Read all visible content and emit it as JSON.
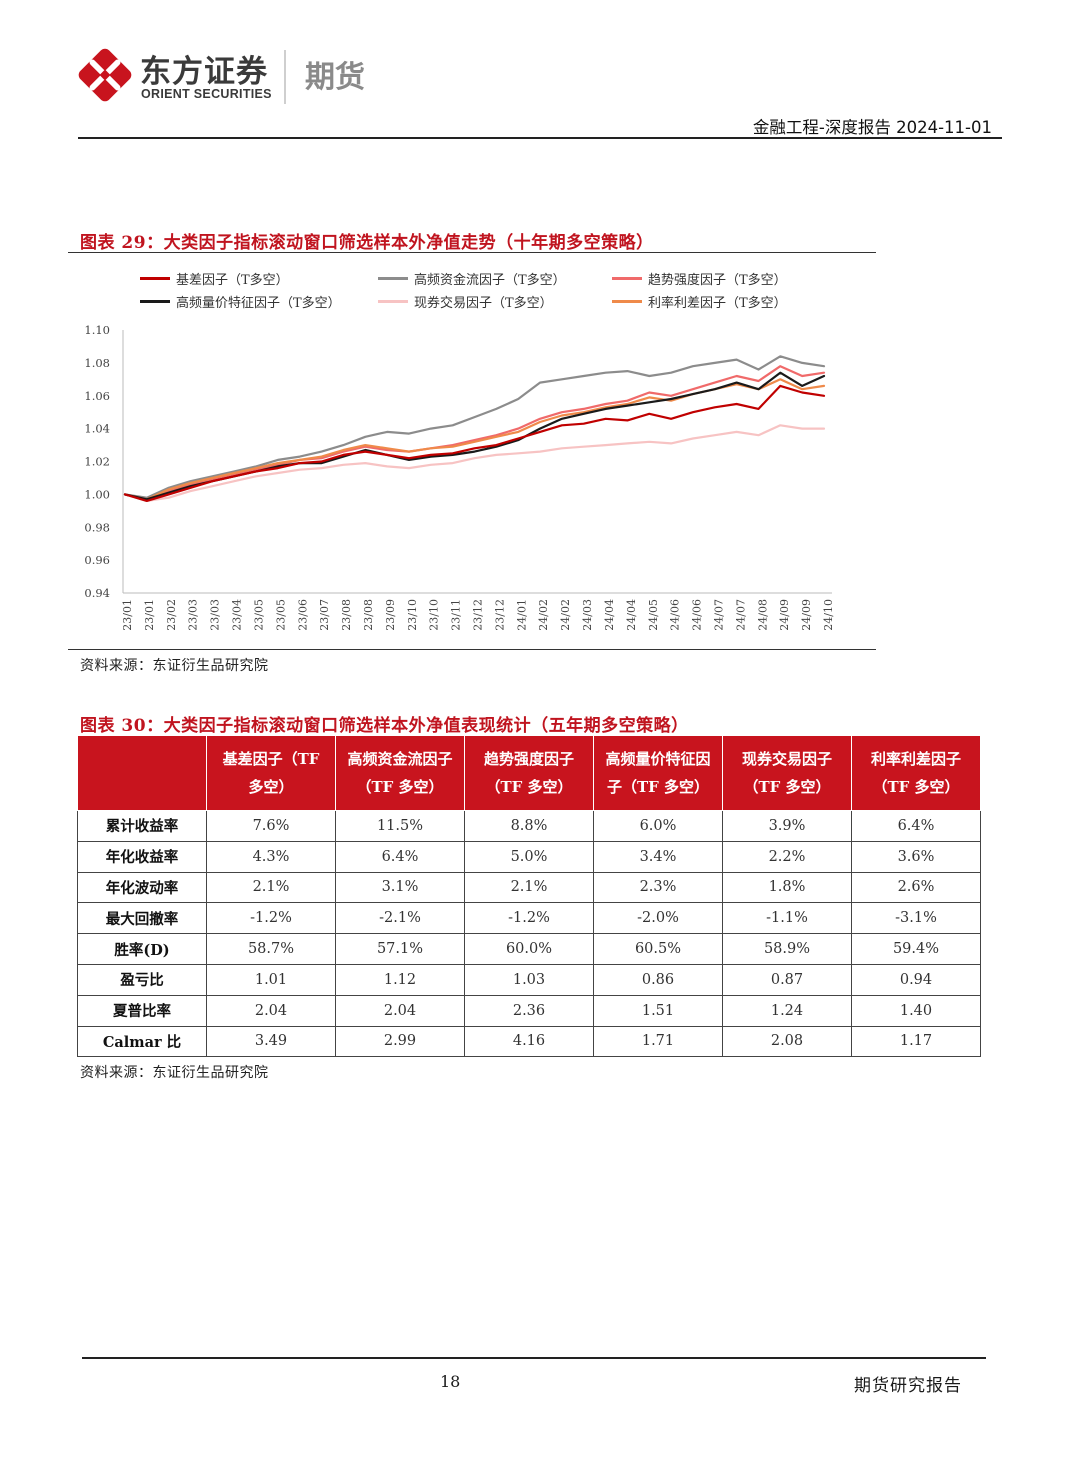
{
  "header": {
    "brand_cn": "东方证券",
    "brand_en": "ORIENT SECURITIES",
    "product": "期货",
    "report_meta": "金融工程-深度报告 2024-11-01",
    "brand_color": "#c8141e"
  },
  "figure29": {
    "title": "图表 29：大类因子指标滚动窗口筛选样本外净值走势（十年期多空策略）",
    "source": "资料来源：东证衍生品研究院"
  },
  "chart_data": {
    "type": "line",
    "ylim": [
      0.94,
      1.1
    ],
    "yticks": [
      "0.94",
      "0.96",
      "0.98",
      "1.00",
      "1.02",
      "1.04",
      "1.06",
      "1.08",
      "1.10"
    ],
    "xticks": [
      "23/01",
      "23/01",
      "23/02",
      "23/03",
      "23/03",
      "23/04",
      "23/05",
      "23/05",
      "23/06",
      "23/07",
      "23/08",
      "23/08",
      "23/09",
      "23/10",
      "23/10",
      "23/11",
      "23/12",
      "23/12",
      "24/01",
      "24/02",
      "24/02",
      "24/03",
      "24/04",
      "24/04",
      "24/05",
      "24/06",
      "24/06",
      "24/07",
      "24/07",
      "24/08",
      "24/09",
      "24/09",
      "24/10"
    ],
    "grid": false,
    "legend_position": "top",
    "series": [
      {
        "name": "基差因子（T多空）",
        "color": "#c00000",
        "width": 2.2,
        "values": [
          1.0,
          0.996,
          1.0,
          1.004,
          1.008,
          1.011,
          1.014,
          1.016,
          1.019,
          1.02,
          1.024,
          1.026,
          1.024,
          1.022,
          1.024,
          1.025,
          1.028,
          1.03,
          1.034,
          1.038,
          1.042,
          1.043,
          1.046,
          1.045,
          1.049,
          1.046,
          1.05,
          1.053,
          1.055,
          1.052,
          1.066,
          1.062,
          1.06
        ]
      },
      {
        "name": "高频资金流因子（T多空）",
        "color": "#8c8c8c",
        "width": 2.2,
        "values": [
          1.0,
          0.998,
          1.004,
          1.008,
          1.011,
          1.014,
          1.017,
          1.021,
          1.023,
          1.026,
          1.03,
          1.035,
          1.038,
          1.037,
          1.04,
          1.042,
          1.047,
          1.052,
          1.058,
          1.068,
          1.07,
          1.072,
          1.074,
          1.075,
          1.072,
          1.074,
          1.078,
          1.08,
          1.082,
          1.076,
          1.084,
          1.08,
          1.078
        ]
      },
      {
        "name": "趋势强度因子（T多空）",
        "color": "#f06a6a",
        "width": 2.2,
        "values": [
          1.0,
          0.997,
          1.002,
          1.006,
          1.009,
          1.012,
          1.015,
          1.018,
          1.021,
          1.022,
          1.026,
          1.029,
          1.027,
          1.026,
          1.028,
          1.03,
          1.033,
          1.036,
          1.04,
          1.046,
          1.05,
          1.052,
          1.055,
          1.057,
          1.062,
          1.06,
          1.064,
          1.068,
          1.072,
          1.069,
          1.078,
          1.072,
          1.074
        ]
      },
      {
        "name": "高频量价特征因子（T多空）",
        "color": "#1a1a1a",
        "width": 2.2,
        "values": [
          1.0,
          0.997,
          1.001,
          1.005,
          1.008,
          1.011,
          1.014,
          1.017,
          1.019,
          1.019,
          1.023,
          1.027,
          1.024,
          1.021,
          1.023,
          1.024,
          1.026,
          1.029,
          1.033,
          1.04,
          1.046,
          1.049,
          1.052,
          1.054,
          1.056,
          1.058,
          1.061,
          1.064,
          1.068,
          1.064,
          1.074,
          1.066,
          1.072
        ]
      },
      {
        "name": "现券交易因子（T多空）",
        "color": "#f7c3c3",
        "width": 2.2,
        "values": [
          1.0,
          0.996,
          0.998,
          1.002,
          1.005,
          1.008,
          1.011,
          1.013,
          1.015,
          1.016,
          1.018,
          1.019,
          1.017,
          1.016,
          1.018,
          1.019,
          1.022,
          1.024,
          1.025,
          1.026,
          1.028,
          1.029,
          1.03,
          1.031,
          1.032,
          1.031,
          1.034,
          1.036,
          1.038,
          1.036,
          1.042,
          1.04,
          1.04
        ]
      },
      {
        "name": "利率利差因子（T多空）",
        "color": "#ef8a4a",
        "width": 2.2,
        "values": [
          1.0,
          0.997,
          1.003,
          1.007,
          1.01,
          1.013,
          1.016,
          1.019,
          1.021,
          1.023,
          1.027,
          1.03,
          1.028,
          1.026,
          1.028,
          1.029,
          1.032,
          1.035,
          1.038,
          1.044,
          1.048,
          1.05,
          1.053,
          1.055,
          1.059,
          1.057,
          1.061,
          1.064,
          1.067,
          1.064,
          1.07,
          1.064,
          1.066
        ]
      }
    ]
  },
  "figure30": {
    "title": "图表 30：大类因子指标滚动窗口筛选样本外净值表现统计（五年期多空策略）",
    "source": "资料来源：东证衍生品研究院",
    "columns": [
      "基差因子（TF 多空）",
      "高频资金流因子（TF 多空）",
      "趋势强度因子（TF 多空）",
      "高频量价特征因子（TF 多空）",
      "现券交易因子（TF 多空）",
      "利率利差因子（TF 多空）"
    ],
    "rows": [
      {
        "label": "累计收益率",
        "values": [
          "7.6%",
          "11.5%",
          "8.8%",
          "6.0%",
          "3.9%",
          "6.4%"
        ]
      },
      {
        "label": "年化收益率",
        "values": [
          "4.3%",
          "6.4%",
          "5.0%",
          "3.4%",
          "2.2%",
          "3.6%"
        ]
      },
      {
        "label": "年化波动率",
        "values": [
          "2.1%",
          "3.1%",
          "2.1%",
          "2.3%",
          "1.8%",
          "2.6%"
        ]
      },
      {
        "label": "最大回撤率",
        "values": [
          "-1.2%",
          "-2.1%",
          "-1.2%",
          "-2.0%",
          "-1.1%",
          "-3.1%"
        ]
      },
      {
        "label": "胜率(D)",
        "values": [
          "58.7%",
          "57.1%",
          "60.0%",
          "60.5%",
          "58.9%",
          "59.4%"
        ]
      },
      {
        "label": "盈亏比",
        "values": [
          "1.01",
          "1.12",
          "1.03",
          "0.86",
          "0.87",
          "0.94"
        ]
      },
      {
        "label": "夏普比率",
        "values": [
          "2.04",
          "2.04",
          "2.36",
          "1.51",
          "1.24",
          "1.40"
        ]
      },
      {
        "label": "Calmar 比",
        "values": [
          "3.49",
          "2.99",
          "4.16",
          "1.71",
          "2.08",
          "1.17"
        ]
      }
    ]
  },
  "footer": {
    "page_number": "18",
    "label": "期货研究报告"
  }
}
